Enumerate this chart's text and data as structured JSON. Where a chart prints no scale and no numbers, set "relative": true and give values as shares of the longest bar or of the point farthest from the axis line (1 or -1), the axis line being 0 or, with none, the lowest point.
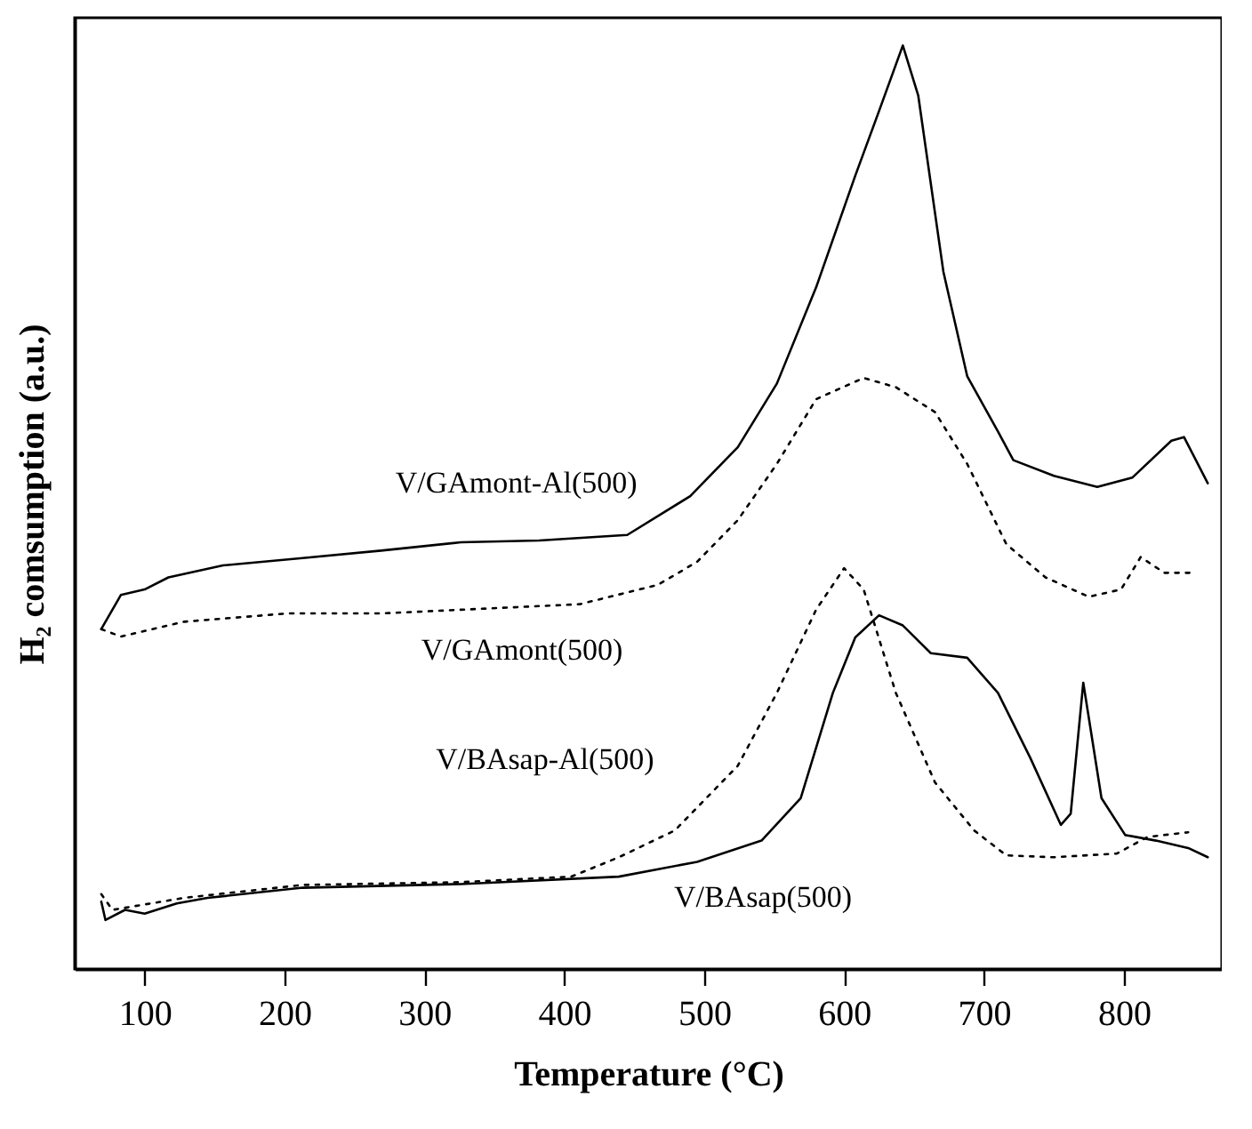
{
  "chart_data": {
    "type": "line",
    "relative": true,
    "xlabel": "Temperature (°C)",
    "ylabel": "H₂ comsumption (a.u.)",
    "xlim": [
      50,
      870
    ],
    "xticks": [
      100,
      200,
      300,
      400,
      500,
      600,
      700,
      800
    ],
    "series": [
      {
        "name": "V/GAmont-Al(500)",
        "color": "#000000",
        "line_style": "solid",
        "x": [
          69,
          83,
          100,
          117,
          156,
          213,
          269,
          326,
          382,
          445,
          490,
          524,
          552,
          580,
          608,
          625,
          642,
          653,
          671,
          688,
          710,
          721,
          750,
          781,
          806,
          834,
          843,
          860
        ],
        "values": [
          0.368,
          0.405,
          0.411,
          0.424,
          0.437,
          0.445,
          0.453,
          0.462,
          0.464,
          0.47,
          0.512,
          0.565,
          0.634,
          0.738,
          0.859,
          0.929,
          1.0,
          0.946,
          0.755,
          0.642,
          0.582,
          0.551,
          0.534,
          0.522,
          0.532,
          0.572,
          0.576,
          0.526
        ]
      },
      {
        "name": "V/GAmont(500)",
        "color": "#000000",
        "line_style": "dotted",
        "x": [
          69,
          83,
          128,
          202,
          269,
          326,
          411,
          467,
          495,
          524,
          552,
          580,
          614,
          637,
          665,
          688,
          716,
          744,
          775,
          798,
          812,
          829,
          851
        ],
        "values": [
          0.368,
          0.36,
          0.376,
          0.385,
          0.385,
          0.389,
          0.395,
          0.416,
          0.441,
          0.486,
          0.547,
          0.617,
          0.64,
          0.63,
          0.603,
          0.547,
          0.46,
          0.424,
          0.403,
          0.411,
          0.446,
          0.429,
          0.429
        ]
      },
      {
        "name": "V/BAsap-Al(500)",
        "color": "#000000",
        "line_style": "dotted",
        "x": [
          69,
          77,
          128,
          213,
          326,
          405,
          439,
          479,
          524,
          552,
          580,
          600,
          614,
          637,
          665,
          693,
          716,
          750,
          795,
          817,
          846
        ],
        "values": [
          0.081,
          0.064,
          0.077,
          0.091,
          0.094,
          0.1,
          0.121,
          0.15,
          0.22,
          0.299,
          0.389,
          0.434,
          0.411,
          0.299,
          0.202,
          0.15,
          0.123,
          0.121,
          0.125,
          0.143,
          0.148
        ]
      },
      {
        "name": "V/BAsap(500)",
        "color": "#000000",
        "line_style": "solid",
        "x": [
          69,
          72,
          86,
          100,
          123,
          145,
          213,
          326,
          439,
          495,
          541,
          569,
          592,
          608,
          625,
          642,
          662,
          688,
          710,
          733,
          755,
          762,
          771,
          784,
          801,
          823,
          846,
          860
        ],
        "values": [
          0.073,
          0.053,
          0.064,
          0.06,
          0.071,
          0.077,
          0.088,
          0.092,
          0.1,
          0.116,
          0.139,
          0.185,
          0.299,
          0.359,
          0.383,
          0.372,
          0.342,
          0.337,
          0.299,
          0.229,
          0.156,
          0.168,
          0.31,
          0.185,
          0.145,
          0.139,
          0.131,
          0.121
        ]
      }
    ]
  }
}
